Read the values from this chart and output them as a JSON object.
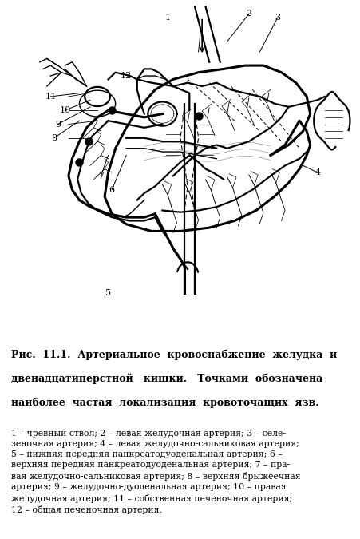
{
  "title_line1": "Рис.  11.1.  Артериальное  кровоснабжение  желудка  и",
  "title_line2": "двенадцатиперстной   кишки.   Точками  обозначена",
  "title_line3": "наиболее  частая  локализация  кровоточащих  язв.",
  "legend_text": "1 – чревный ствол; 2 – левая желудочная артерия; 3 – селе-\nзеночная артерия; 4 – левая желудочно-сальниковая артерия;\n5 – нижняя передняя панкреатодуоденальная артерия; 6 –\nверхняя передняя панкреатодуоденальная артерия; 7 – пра-\nвая желудочно-сальниковая артерия; 8 – верхняя брыжеечная\nартерия; 9 – желудочно-дуоденальная артерия; 10 – правая\nжелудочная артерия; 11 – собственная печеночная артерия;\n12 – общая печеночная артерия."
}
